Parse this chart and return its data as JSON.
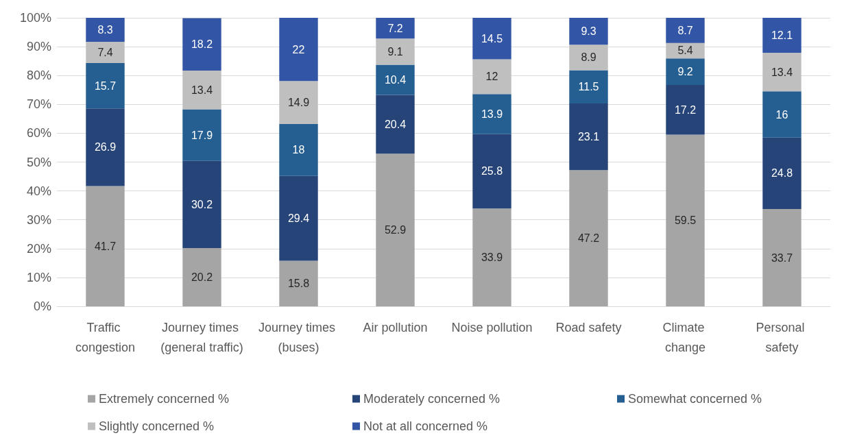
{
  "chart_data": {
    "type": "bar",
    "stacked": true,
    "data_labels": true,
    "grid": "y",
    "legend": "bottom",
    "categories": [
      "Traffic congestion",
      "Journey times (general traffic)",
      "Journey times (buses)",
      "Air pollution",
      "Noise pollution",
      "Road safety",
      "Climate change",
      "Personal safety"
    ],
    "series": [
      {
        "name": "Extremely concerned %",
        "color": "#a5a5a5",
        "values": [
          41.7,
          20.2,
          15.8,
          52.9,
          33.9,
          47.2,
          59.5,
          33.7
        ]
      },
      {
        "name": "Moderately concerned %",
        "color": "#264478",
        "values": [
          26.9,
          30.2,
          29.4,
          20.4,
          25.8,
          23.1,
          17.2,
          24.8
        ]
      },
      {
        "name": "Somewhat concerned %",
        "color": "#255e91",
        "values": [
          15.7,
          17.9,
          18,
          10.4,
          13.9,
          11.5,
          9.2,
          16
        ]
      },
      {
        "name": "Slightly concerned %",
        "color": "#bfbfbf",
        "values": [
          7.4,
          13.4,
          14.9,
          9.1,
          12,
          8.9,
          5.4,
          13.4
        ]
      },
      {
        "name": "Not at all concerned %",
        "color": "#3355a5",
        "values": [
          8.3,
          18.2,
          22,
          7.2,
          14.5,
          9.3,
          8.7,
          12.1
        ]
      }
    ],
    "ylim": [
      0,
      100
    ],
    "yticks": [
      {
        "value": 0,
        "label": "0%"
      },
      {
        "value": 10,
        "label": "10%"
      },
      {
        "value": 20,
        "label": "20%"
      },
      {
        "value": 30,
        "label": "30%"
      },
      {
        "value": 40,
        "label": "40%"
      },
      {
        "value": 50,
        "label": "50%"
      },
      {
        "value": 60,
        "label": "60%"
      },
      {
        "value": 70,
        "label": "70%"
      },
      {
        "value": 80,
        "label": "80%"
      },
      {
        "value": 90,
        "label": "90%"
      },
      {
        "value": 100,
        "label": "100%"
      }
    ]
  }
}
